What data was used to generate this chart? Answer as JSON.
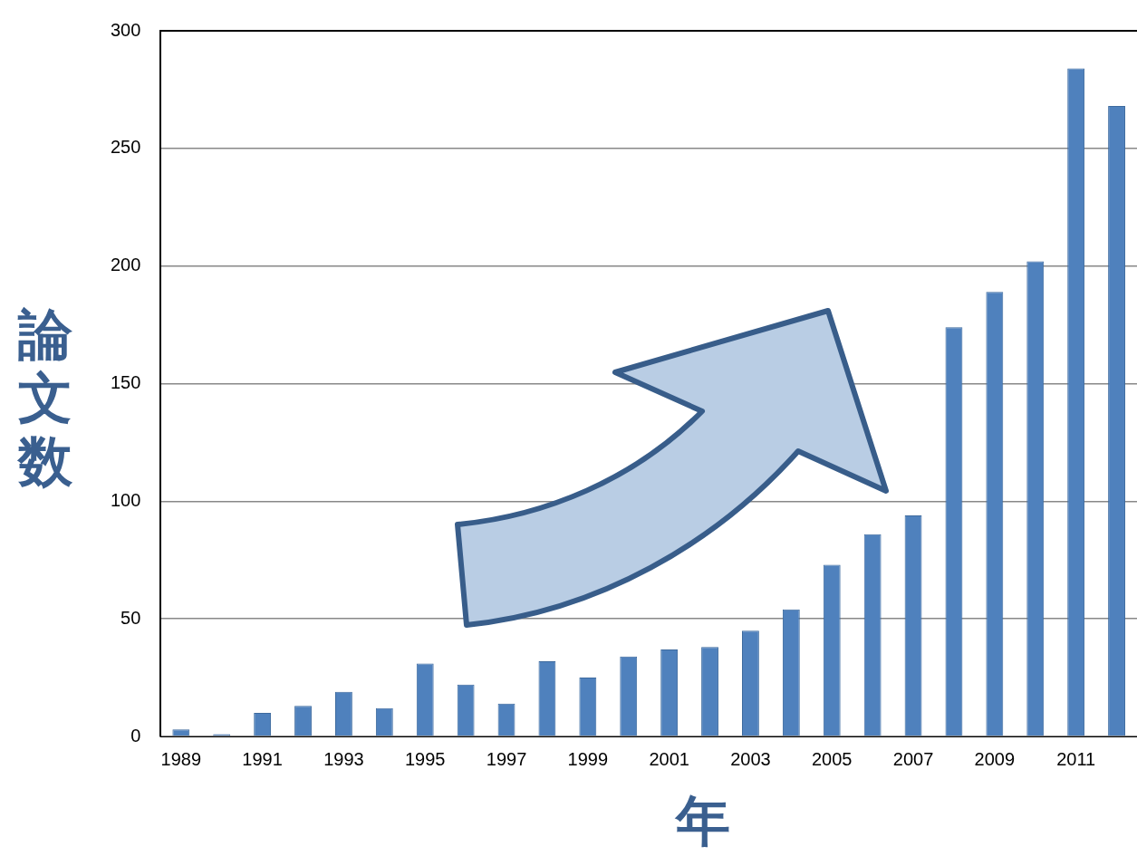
{
  "chart_data": {
    "type": "bar",
    "xlabel": "年",
    "ylabel": "論文数",
    "categories": [
      "1989",
      null,
      "1991",
      null,
      "1993",
      null,
      "1995",
      null,
      "1997",
      null,
      "1999",
      null,
      "2001",
      null,
      "2003",
      null,
      "2005",
      null,
      "2007",
      null,
      "2009",
      null,
      "2011",
      null
    ],
    "values": [
      3,
      1,
      10,
      13,
      19,
      12,
      31,
      22,
      14,
      32,
      25,
      34,
      37,
      38,
      45,
      54,
      73,
      86,
      94,
      174,
      189,
      202,
      284,
      268
    ],
    "color": "#4f81bd",
    "ylim": [
      0,
      300
    ],
    "yticks": [
      0,
      50,
      100,
      150,
      200,
      250,
      300
    ],
    "grid": "y",
    "legend": false
  }
}
